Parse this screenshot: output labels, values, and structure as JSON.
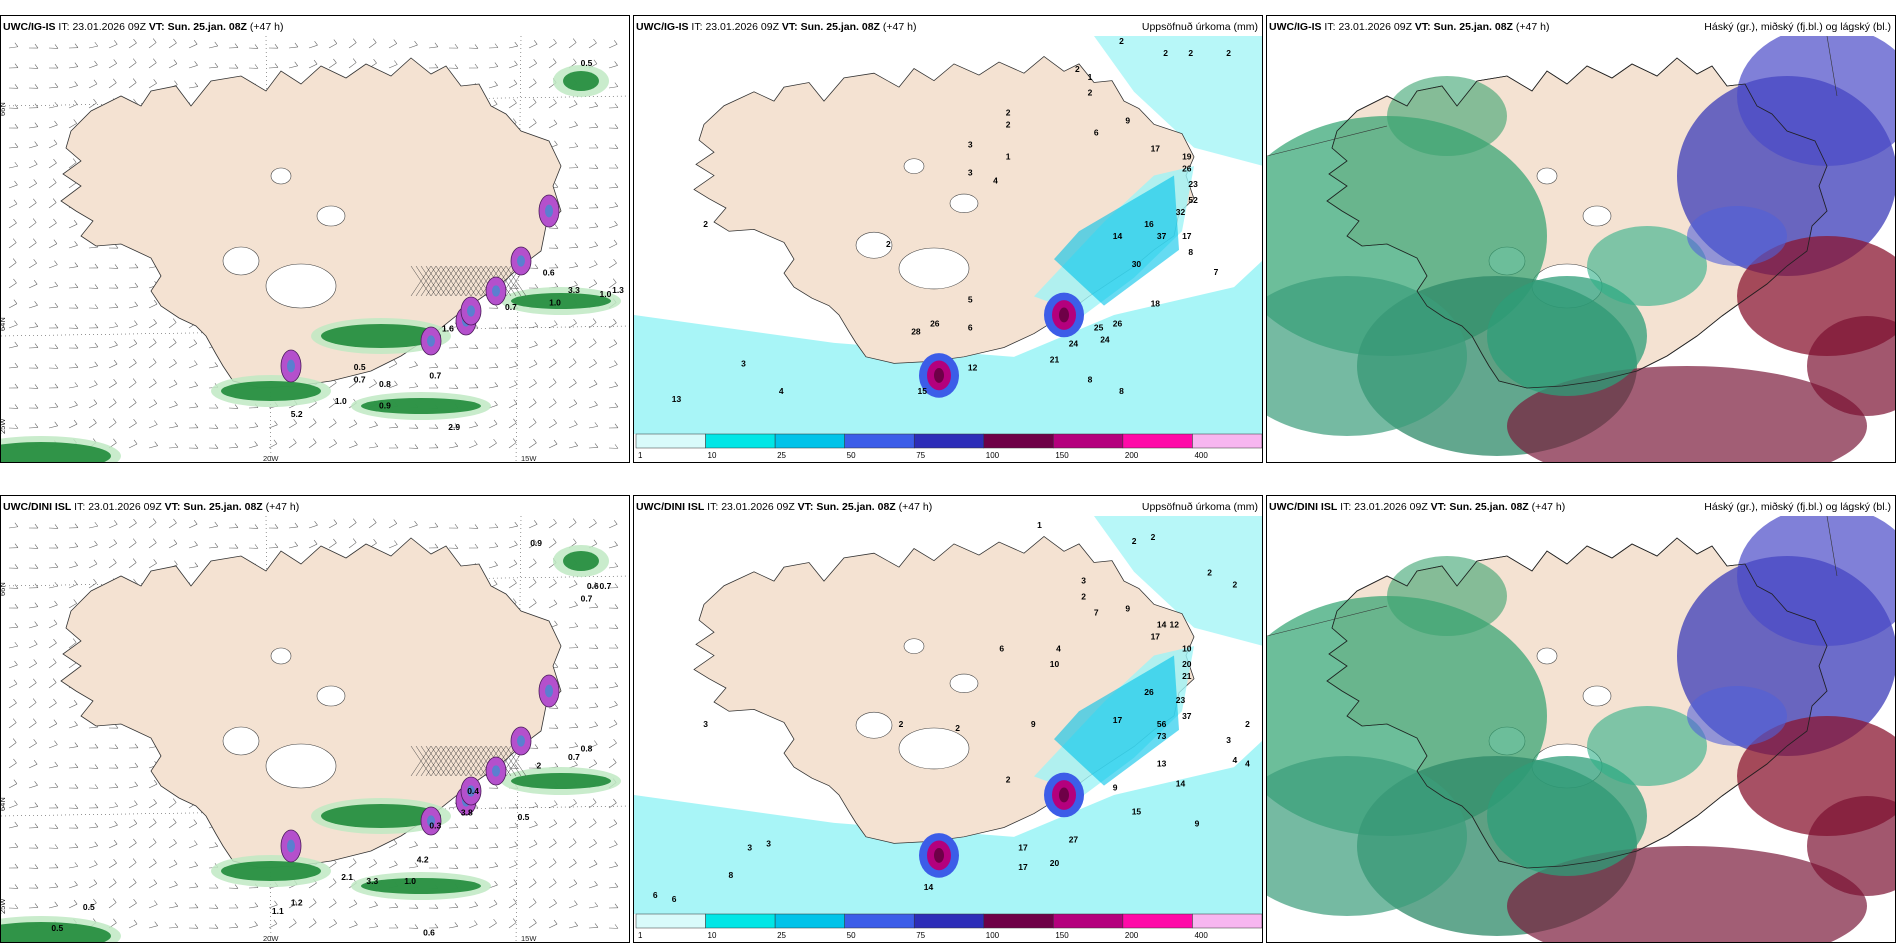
{
  "panels": [
    {
      "model": "UWC/IG-IS",
      "it_label": "IT:",
      "it_value": "23.01.2026 09Z",
      "vt_label": "VT:",
      "vt_value": "Sun. 25.jan. 08Z",
      "lead": "(+47 h)",
      "right_title": "",
      "type": "wind",
      "axis_labels": {
        "lat_top": "66N",
        "lat_mid": "64N",
        "lon_left": "20W",
        "lon_right": "15W",
        "corner": "25W"
      },
      "values": [
        {
          "t": "0.5",
          "x": 0.92,
          "y": 0.07
        },
        {
          "t": "0.6",
          "x": 0.86,
          "y": 0.56
        },
        {
          "t": "3.3",
          "x": 0.9,
          "y": 0.6
        },
        {
          "t": "1.0",
          "x": 0.95,
          "y": 0.61
        },
        {
          "t": "1.3",
          "x": 0.97,
          "y": 0.6
        },
        {
          "t": "1.0",
          "x": 0.87,
          "y": 0.63
        },
        {
          "t": "0.7",
          "x": 0.8,
          "y": 0.64
        },
        {
          "t": "1.6",
          "x": 0.7,
          "y": 0.69
        },
        {
          "t": "0.5",
          "x": 0.56,
          "y": 0.78
        },
        {
          "t": "0.7",
          "x": 0.56,
          "y": 0.81
        },
        {
          "t": "0.8",
          "x": 0.6,
          "y": 0.82
        },
        {
          "t": "0.7",
          "x": 0.68,
          "y": 0.8
        },
        {
          "t": "1.0",
          "x": 0.53,
          "y": 0.86
        },
        {
          "t": "0.9",
          "x": 0.6,
          "y": 0.87
        },
        {
          "t": "5.2",
          "x": 0.46,
          "y": 0.89
        },
        {
          "t": "2.9",
          "x": 0.71,
          "y": 0.92
        }
      ]
    },
    {
      "model": "UWC/IG-IS",
      "it_label": "IT:",
      "it_value": "23.01.2026 09Z",
      "vt_label": "VT:",
      "vt_value": "Sun. 25.jan. 08Z",
      "lead": "(+47 h)",
      "right_title": "Uppsöfnuð úrkoma (mm)",
      "type": "precip",
      "values": [
        {
          "t": "2",
          "x": 0.77,
          "y": 0.02
        },
        {
          "t": "2",
          "x": 0.84,
          "y": 0.05
        },
        {
          "t": "2",
          "x": 0.88,
          "y": 0.05
        },
        {
          "t": "2",
          "x": 0.94,
          "y": 0.05
        },
        {
          "t": "2",
          "x": 0.7,
          "y": 0.09
        },
        {
          "t": "1",
          "x": 0.72,
          "y": 0.11
        },
        {
          "t": "2",
          "x": 0.72,
          "y": 0.15
        },
        {
          "t": "9",
          "x": 0.78,
          "y": 0.22
        },
        {
          "t": "6",
          "x": 0.73,
          "y": 0.25
        },
        {
          "t": "2",
          "x": 0.59,
          "y": 0.23
        },
        {
          "t": "2",
          "x": 0.59,
          "y": 0.2
        },
        {
          "t": "3",
          "x": 0.53,
          "y": 0.28
        },
        {
          "t": "1",
          "x": 0.59,
          "y": 0.31
        },
        {
          "t": "3",
          "x": 0.53,
          "y": 0.35
        },
        {
          "t": "4",
          "x": 0.57,
          "y": 0.37
        },
        {
          "t": "17",
          "x": 0.82,
          "y": 0.29
        },
        {
          "t": "19",
          "x": 0.87,
          "y": 0.31
        },
        {
          "t": "26",
          "x": 0.87,
          "y": 0.34
        },
        {
          "t": "23",
          "x": 0.88,
          "y": 0.38
        },
        {
          "t": "52",
          "x": 0.88,
          "y": 0.42
        },
        {
          "t": "32",
          "x": 0.86,
          "y": 0.45
        },
        {
          "t": "16",
          "x": 0.81,
          "y": 0.48
        },
        {
          "t": "37",
          "x": 0.83,
          "y": 0.51
        },
        {
          "t": "17",
          "x": 0.87,
          "y": 0.51
        },
        {
          "t": "14",
          "x": 0.76,
          "y": 0.51
        },
        {
          "t": "30",
          "x": 0.79,
          "y": 0.58
        },
        {
          "t": "8",
          "x": 0.88,
          "y": 0.55
        },
        {
          "t": "7",
          "x": 0.92,
          "y": 0.6
        },
        {
          "t": "18",
          "x": 0.82,
          "y": 0.68
        },
        {
          "t": "26",
          "x": 0.76,
          "y": 0.73
        },
        {
          "t": "25",
          "x": 0.73,
          "y": 0.74
        },
        {
          "t": "24",
          "x": 0.69,
          "y": 0.78
        },
        {
          "t": "24",
          "x": 0.74,
          "y": 0.77
        },
        {
          "t": "21",
          "x": 0.66,
          "y": 0.82
        },
        {
          "t": "26",
          "x": 0.47,
          "y": 0.73
        },
        {
          "t": "28",
          "x": 0.44,
          "y": 0.75
        },
        {
          "t": "6",
          "x": 0.53,
          "y": 0.74
        },
        {
          "t": "5",
          "x": 0.53,
          "y": 0.67
        },
        {
          "t": "12",
          "x": 0.53,
          "y": 0.84
        },
        {
          "t": "15",
          "x": 0.45,
          "y": 0.9
        },
        {
          "t": "3",
          "x": 0.17,
          "y": 0.83
        },
        {
          "t": "13",
          "x": 0.06,
          "y": 0.92
        },
        {
          "t": "4",
          "x": 0.23,
          "y": 0.9
        },
        {
          "t": "8",
          "x": 0.72,
          "y": 0.87
        },
        {
          "t": "8",
          "x": 0.77,
          "y": 0.9
        },
        {
          "t": "2",
          "x": 0.11,
          "y": 0.48
        },
        {
          "t": "2",
          "x": 0.4,
          "y": 0.53
        }
      ],
      "legend_ticks": [
        "1",
        "10",
        "25",
        "50",
        "75",
        "100",
        "150",
        "200",
        "400"
      ]
    },
    {
      "model": "UWC/IG-IS",
      "it_label": "IT:",
      "it_value": "23.01.2026 09Z",
      "vt_label": "VT:",
      "vt_value": "Sun. 25.jan. 08Z",
      "lead": "(+47 h)",
      "right_title": "Háský (gr.), miðský (fj.bl.) og lágský (bl.)",
      "type": "cloud"
    },
    {
      "model": "UWC/DINI ISL",
      "it_label": "IT:",
      "it_value": "23.01.2026 09Z",
      "vt_label": "VT:",
      "vt_value": "Sun. 25.jan. 08Z",
      "lead": "(+47 h)",
      "right_title": "",
      "type": "wind",
      "axis_labels": {
        "lat_top": "66N",
        "lat_mid": "64N",
        "lon_left": "20W",
        "lon_right": "15W",
        "corner": "25W"
      },
      "values": [
        {
          "t": "0.9",
          "x": 0.84,
          "y": 0.07
        },
        {
          "t": "0.6",
          "x": 0.93,
          "y": 0.17
        },
        {
          "t": "0.7",
          "x": 0.95,
          "y": 0.17
        },
        {
          "t": "0.7",
          "x": 0.92,
          "y": 0.2
        },
        {
          "t": "0.8",
          "x": 0.92,
          "y": 0.55
        },
        {
          "t": "0.7",
          "x": 0.9,
          "y": 0.57
        },
        {
          "t": "2",
          "x": 0.85,
          "y": 0.59
        },
        {
          "t": "0.4",
          "x": 0.74,
          "y": 0.65
        },
        {
          "t": "3.8",
          "x": 0.73,
          "y": 0.7
        },
        {
          "t": "0.5",
          "x": 0.82,
          "y": 0.71
        },
        {
          "t": "0.3",
          "x": 0.68,
          "y": 0.73
        },
        {
          "t": "4.2",
          "x": 0.66,
          "y": 0.81
        },
        {
          "t": "1.0",
          "x": 0.64,
          "y": 0.86
        },
        {
          "t": "3.3",
          "x": 0.58,
          "y": 0.86
        },
        {
          "t": "2.1",
          "x": 0.54,
          "y": 0.85
        },
        {
          "t": "1.2",
          "x": 0.46,
          "y": 0.91
        },
        {
          "t": "1.1",
          "x": 0.43,
          "y": 0.93
        },
        {
          "t": "0.5",
          "x": 0.13,
          "y": 0.92
        },
        {
          "t": "0.5",
          "x": 0.08,
          "y": 0.97
        },
        {
          "t": "0.6",
          "x": 0.67,
          "y": 0.98
        }
      ]
    },
    {
      "model": "UWC/DINI ISL",
      "it_label": "IT:",
      "it_value": "23.01.2026 09Z",
      "vt_label": "VT:",
      "vt_value": "Sun. 25.jan. 08Z",
      "lead": "(+47 h)",
      "right_title": "Uppsöfnuð úrkoma (mm)",
      "type": "precip",
      "values": [
        {
          "t": "1",
          "x": 0.64,
          "y": 0.03
        },
        {
          "t": "2",
          "x": 0.79,
          "y": 0.07
        },
        {
          "t": "2",
          "x": 0.82,
          "y": 0.06
        },
        {
          "t": "2",
          "x": 0.91,
          "y": 0.15
        },
        {
          "t": "2",
          "x": 0.95,
          "y": 0.18
        },
        {
          "t": "3",
          "x": 0.71,
          "y": 0.17
        },
        {
          "t": "2",
          "x": 0.71,
          "y": 0.21
        },
        {
          "t": "7",
          "x": 0.73,
          "y": 0.25
        },
        {
          "t": "9",
          "x": 0.78,
          "y": 0.24
        },
        {
          "t": "14",
          "x": 0.83,
          "y": 0.28
        },
        {
          "t": "12",
          "x": 0.85,
          "y": 0.28
        },
        {
          "t": "17",
          "x": 0.82,
          "y": 0.31
        },
        {
          "t": "10",
          "x": 0.87,
          "y": 0.34
        },
        {
          "t": "20",
          "x": 0.87,
          "y": 0.38
        },
        {
          "t": "21",
          "x": 0.87,
          "y": 0.41
        },
        {
          "t": "26",
          "x": 0.81,
          "y": 0.45
        },
        {
          "t": "23",
          "x": 0.86,
          "y": 0.47
        },
        {
          "t": "37",
          "x": 0.87,
          "y": 0.51
        },
        {
          "t": "56",
          "x": 0.83,
          "y": 0.53
        },
        {
          "t": "73",
          "x": 0.83,
          "y": 0.56
        },
        {
          "t": "17",
          "x": 0.76,
          "y": 0.52
        },
        {
          "t": "13",
          "x": 0.83,
          "y": 0.63
        },
        {
          "t": "14",
          "x": 0.86,
          "y": 0.68
        },
        {
          "t": "9",
          "x": 0.76,
          "y": 0.69
        },
        {
          "t": "15",
          "x": 0.79,
          "y": 0.75
        },
        {
          "t": "9",
          "x": 0.89,
          "y": 0.78
        },
        {
          "t": "27",
          "x": 0.69,
          "y": 0.82
        },
        {
          "t": "17",
          "x": 0.61,
          "y": 0.84
        },
        {
          "t": "20",
          "x": 0.66,
          "y": 0.88
        },
        {
          "t": "17",
          "x": 0.61,
          "y": 0.89
        },
        {
          "t": "14",
          "x": 0.46,
          "y": 0.94
        },
        {
          "t": "10",
          "x": 0.66,
          "y": 0.38
        },
        {
          "t": "6",
          "x": 0.58,
          "y": 0.34
        },
        {
          "t": "4",
          "x": 0.67,
          "y": 0.34
        },
        {
          "t": "9",
          "x": 0.63,
          "y": 0.53
        },
        {
          "t": "2",
          "x": 0.59,
          "y": 0.67
        },
        {
          "t": "3",
          "x": 0.18,
          "y": 0.84
        },
        {
          "t": "3",
          "x": 0.21,
          "y": 0.83
        },
        {
          "t": "8",
          "x": 0.15,
          "y": 0.91
        },
        {
          "t": "6",
          "x": 0.03,
          "y": 0.96
        },
        {
          "t": "6",
          "x": 0.06,
          "y": 0.97
        },
        {
          "t": "3",
          "x": 0.11,
          "y": 0.53
        },
        {
          "t": "2",
          "x": 0.51,
          "y": 0.54
        },
        {
          "t": "2",
          "x": 0.42,
          "y": 0.53
        },
        {
          "t": "3",
          "x": 0.94,
          "y": 0.57
        },
        {
          "t": "4",
          "x": 0.95,
          "y": 0.62
        },
        {
          "t": "4",
          "x": 0.97,
          "y": 0.63
        },
        {
          "t": "2",
          "x": 0.97,
          "y": 0.53
        }
      ],
      "legend_ticks": [
        "1",
        "10",
        "25",
        "50",
        "75",
        "100",
        "150",
        "200",
        "400"
      ]
    },
    {
      "model": "UWC/DINI ISL",
      "it_label": "IT:",
      "it_value": "23.01.2026 09Z",
      "vt_label": "VT:",
      "vt_value": "Sun. 25.jan. 08Z",
      "lead": "(+47 h)",
      "right_title": "Háský (gr.), miðský (fj.bl.) og lágský (bl.)",
      "type": "cloud"
    }
  ],
  "legend_colors": [
    "#d9fbfb",
    "#00e6e6",
    "#00c3e9",
    "#3c5de8",
    "#2d2db8",
    "#6e0047",
    "#b4007d",
    "#ff0aa8",
    "#f7b6f0"
  ],
  "land_color": "#f4e2d2",
  "colors": {
    "wind_green": "#1f8b3a",
    "wind_light": "#bfe9c3",
    "purple": "#b450cc",
    "cyan": "#9ff4f6",
    "deep_blue": "#2030a0",
    "maroon": "#8a1530",
    "cloud_green": "#2ea36f"
  }
}
